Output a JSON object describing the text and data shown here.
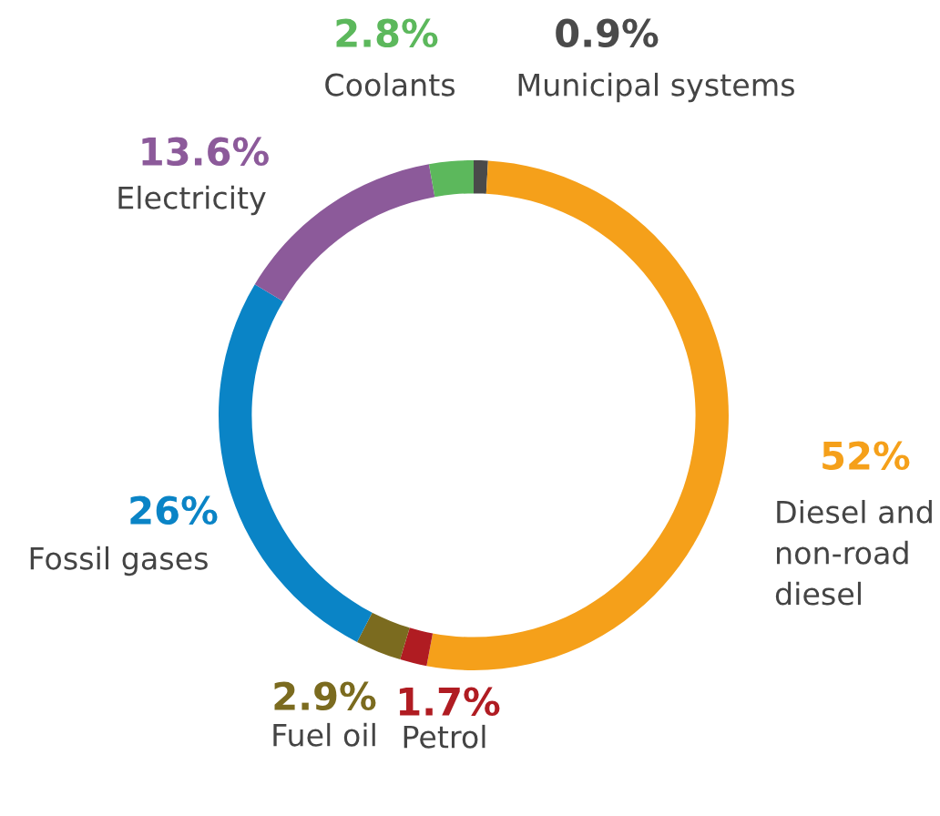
{
  "chart_data": {
    "type": "donut",
    "categories": [
      "Municipal systems",
      "Diesel and\nnon-road\ndiesel",
      "Petrol",
      "Fuel oil",
      "Fossil gases",
      "Electricity",
      "Coolants"
    ],
    "values": [
      0.9,
      52,
      1.7,
      2.9,
      26,
      13.6,
      2.8
    ],
    "value_labels": [
      "0.9%",
      "52%",
      "1.7%",
      "2.9%",
      "26%",
      "13.6%",
      "2.8%"
    ],
    "colors": [
      "#4a4a4a",
      "#f5a01a",
      "#b01c22",
      "#7b6b1f",
      "#0a84c6",
      "#8c5a9a",
      "#5cb85c"
    ]
  }
}
